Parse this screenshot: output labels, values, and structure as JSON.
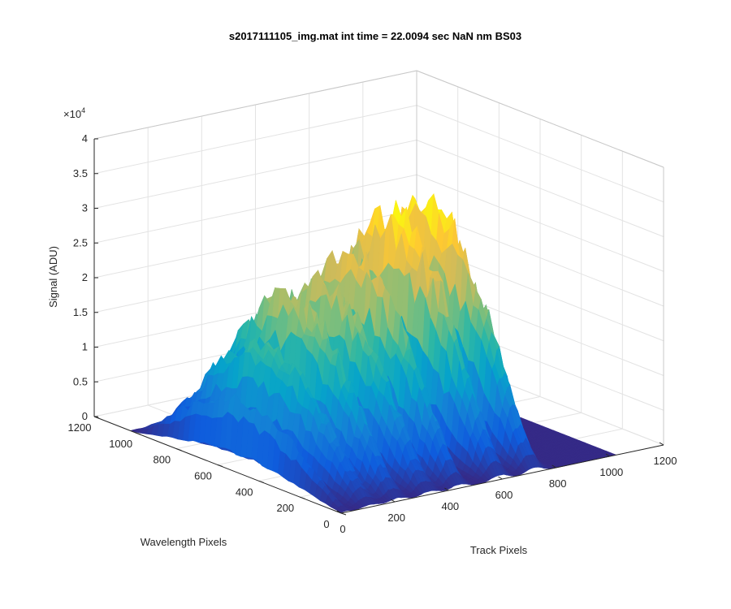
{
  "chart_data": {
    "type": "surface",
    "title": "s2017111105_img.mat int time = 22.0094 sec  NaN nm BS03",
    "xlabel": "Track Pixels",
    "ylabel": "Wavelength Pixels",
    "zlabel": "Signal (ADU)",
    "z_multiplier": "×10",
    "z_exponent": "4",
    "xlim": [
      0,
      1200
    ],
    "ylim": [
      0,
      1200
    ],
    "zlim": [
      0,
      40000
    ],
    "x_ticks": [
      "0",
      "200",
      "400",
      "600",
      "800",
      "1000",
      "1200"
    ],
    "y_ticks": [
      "0",
      "200",
      "400",
      "600",
      "800",
      "1000",
      "1200"
    ],
    "z_ticks": [
      "0",
      "0.5",
      "1",
      "1.5",
      "2",
      "2.5",
      "3",
      "3.5",
      "4"
    ],
    "grid": true,
    "colormap": "parula",
    "colormap_stops": [
      "#352a87",
      "#0f5cdd",
      "#1481d6",
      "#06a4ca",
      "#2eb7a4",
      "#87bf77",
      "#d1bb59",
      "#fec832",
      "#f9fb0e"
    ],
    "y_extent": [
      0,
      1024
    ],
    "x_extent": [
      0,
      1024
    ],
    "peaks": [
      {
        "track_center": 20,
        "track_width": 18,
        "peak_signal": 10000
      },
      {
        "track_center": 110,
        "track_width": 40,
        "peak_signal": 17000
      },
      {
        "track_center": 210,
        "track_width": 40,
        "peak_signal": 23000
      },
      {
        "track_center": 330,
        "track_width": 40,
        "peak_signal": 24000
      },
      {
        "track_center": 440,
        "track_width": 38,
        "peak_signal": 27000
      },
      {
        "track_center": 590,
        "track_width": 40,
        "peak_signal": 32000
      },
      {
        "track_center": 720,
        "track_width": 40,
        "peak_signal": 32000
      }
    ]
  }
}
